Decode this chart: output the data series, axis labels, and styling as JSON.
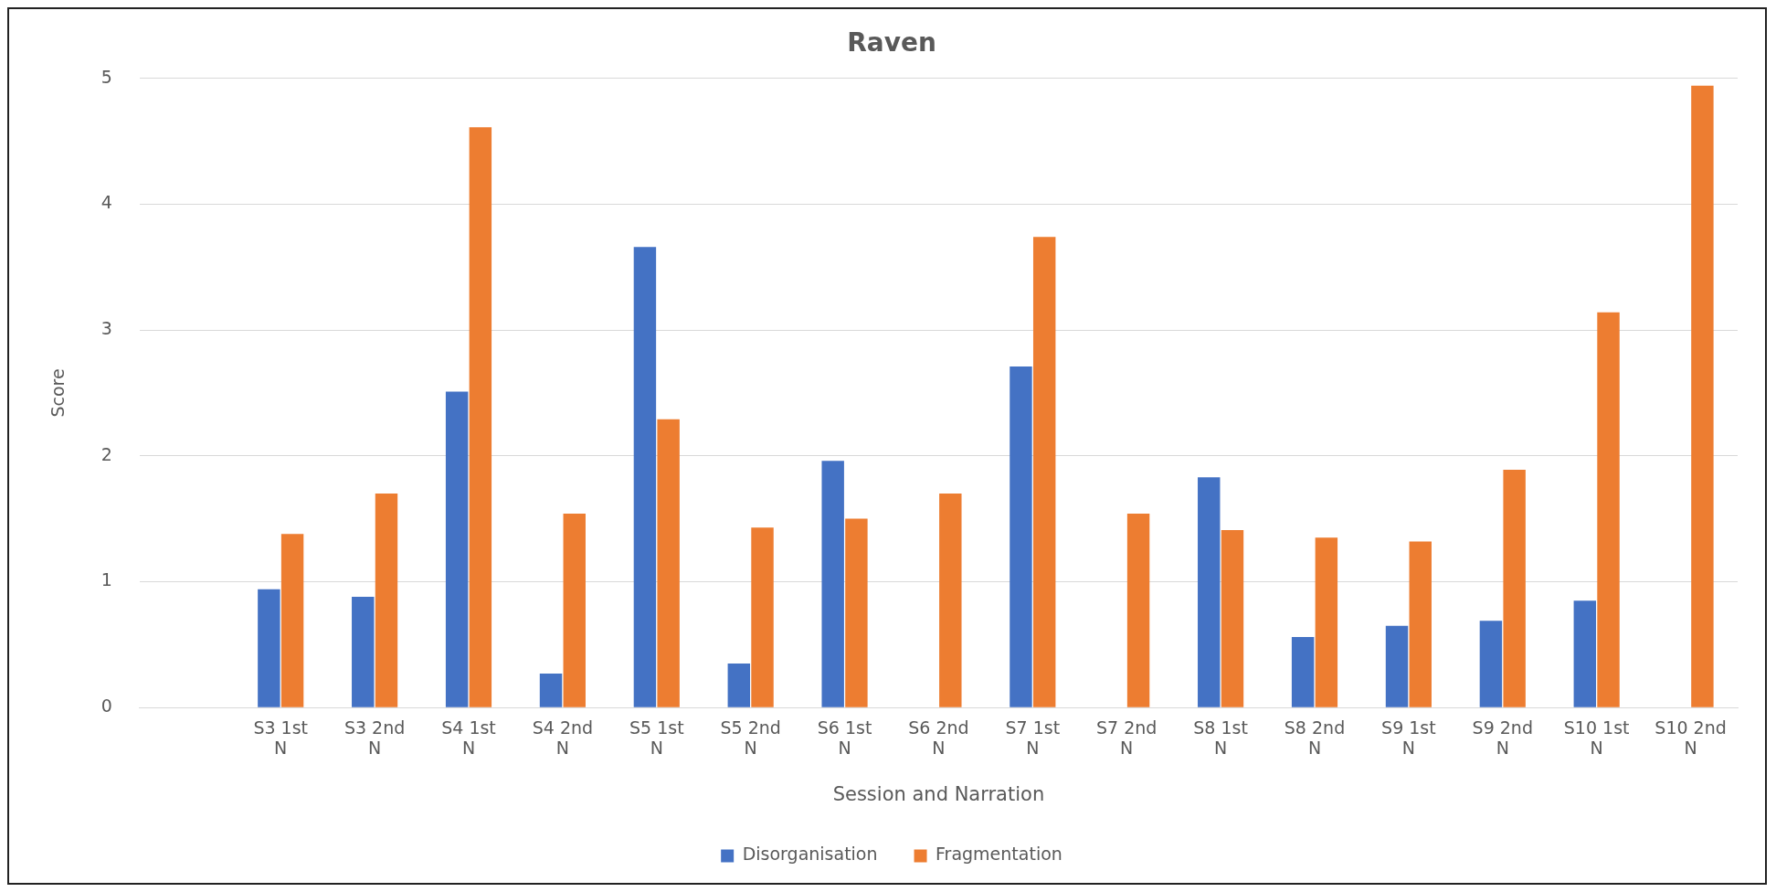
{
  "chart_data": {
    "type": "bar",
    "title": "Raven",
    "xlabel": "Session and Narration",
    "ylabel": "Score",
    "categories": [
      null,
      "S3 1st N",
      "S3 2nd N",
      "S4 1st N",
      "S4 2nd N",
      "S5 1st N",
      "S5 2nd N",
      "S6 1st N",
      "S6 2nd N",
      "S7 1st N",
      "S7 2nd N",
      "S8 1st N",
      "S8 2nd N",
      "S9 1st N",
      "S9 2nd N",
      "S10 1st N",
      "S10 2nd N"
    ],
    "series": [
      {
        "name": "Disorganisation",
        "color": "#4472c4",
        "values": [
          null,
          0.94,
          0.88,
          2.51,
          0.27,
          3.66,
          0.35,
          1.96,
          null,
          2.71,
          null,
          1.83,
          0.56,
          0.65,
          0.69,
          0.85,
          null
        ]
      },
      {
        "name": "Fragmentation",
        "color": "#ed7d31",
        "values": [
          null,
          1.38,
          1.7,
          4.61,
          1.54,
          2.29,
          1.43,
          1.5,
          1.7,
          3.74,
          1.54,
          1.41,
          1.35,
          1.32,
          1.89,
          3.14,
          4.94
        ]
      }
    ],
    "ylim": [
      0,
      5
    ],
    "yticks": [
      0,
      1,
      2,
      3,
      4,
      5
    ],
    "grid": "y",
    "legend": "bottom"
  }
}
